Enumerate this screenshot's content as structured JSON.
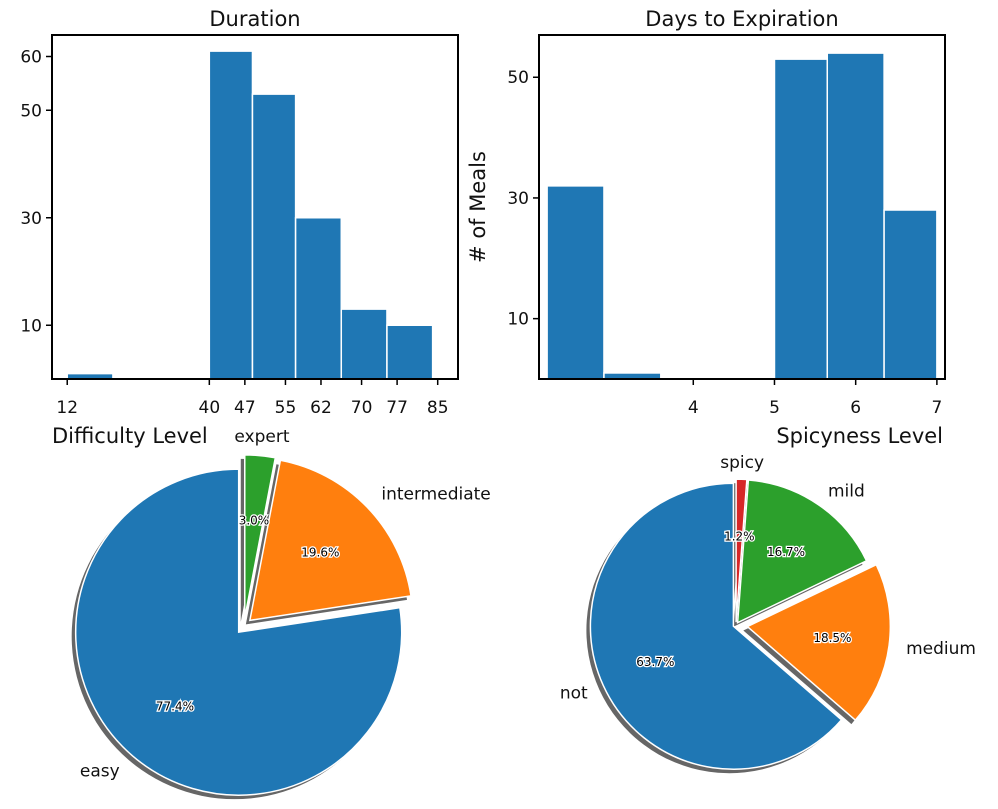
{
  "chart_data": [
    {
      "type": "bar",
      "title": "Duration",
      "xlabel": "",
      "ylabel": "",
      "xlim": [
        9,
        89
      ],
      "ylim": [
        0,
        64
      ],
      "xticks": [
        12,
        40,
        47,
        55,
        62,
        70,
        77,
        85
      ],
      "yticks": [
        10,
        30,
        50,
        60
      ],
      "bins": [
        {
          "start": 12,
          "end": 21,
          "value": 1
        },
        {
          "start": 40,
          "end": 48.5,
          "value": 61
        },
        {
          "start": 48.5,
          "end": 57,
          "value": 53
        },
        {
          "start": 57,
          "end": 66,
          "value": 30
        },
        {
          "start": 66,
          "end": 75,
          "value": 13
        },
        {
          "start": 75,
          "end": 84,
          "value": 10
        }
      ],
      "color": "#1f77b4"
    },
    {
      "type": "bar",
      "title": "Days to Expiration",
      "xlabel": "",
      "ylabel": "# of Meals",
      "xlim": [
        2.1,
        7.1
      ],
      "ylim": [
        0,
        57
      ],
      "xticks": [
        4,
        5,
        6,
        7
      ],
      "yticks": [
        10,
        30,
        50
      ],
      "bins": [
        {
          "start": 2.2,
          "end": 2.9,
          "value": 32
        },
        {
          "start": 2.9,
          "end": 3.6,
          "value": 1
        },
        {
          "start": 5.0,
          "end": 5.65,
          "value": 53
        },
        {
          "start": 5.65,
          "end": 6.35,
          "value": 54
        },
        {
          "start": 6.35,
          "end": 7.0,
          "value": 28
        }
      ],
      "color": "#1f77b4"
    },
    {
      "type": "pie",
      "title": "Difficulty Level",
      "labels": [
        "easy",
        "intermediate",
        "expert"
      ],
      "values": [
        77.4,
        19.6,
        3.0
      ],
      "percent_labels": [
        "77.4%",
        "19.6%",
        "3.0%"
      ],
      "colors": [
        "#1f77b4",
        "#ff7f0e",
        "#2ca02c"
      ],
      "explode": [
        0.05,
        0.05,
        0.05
      ],
      "shadow": true,
      "startangle": 90
    },
    {
      "type": "pie",
      "title": "Spicyness Level",
      "labels": [
        "not",
        "medium",
        "mild",
        "spicy"
      ],
      "values": [
        63.7,
        18.5,
        16.7,
        1.2
      ],
      "percent_labels": [
        "63.7%",
        "18.5%",
        "16.7%",
        "1.2%"
      ],
      "colors": [
        "#1f77b4",
        "#ff7f0e",
        "#2ca02c",
        "#d62728"
      ],
      "explode": [
        0.02,
        0.08,
        0.02,
        0.02
      ],
      "shadow": true,
      "startangle": 90
    }
  ]
}
